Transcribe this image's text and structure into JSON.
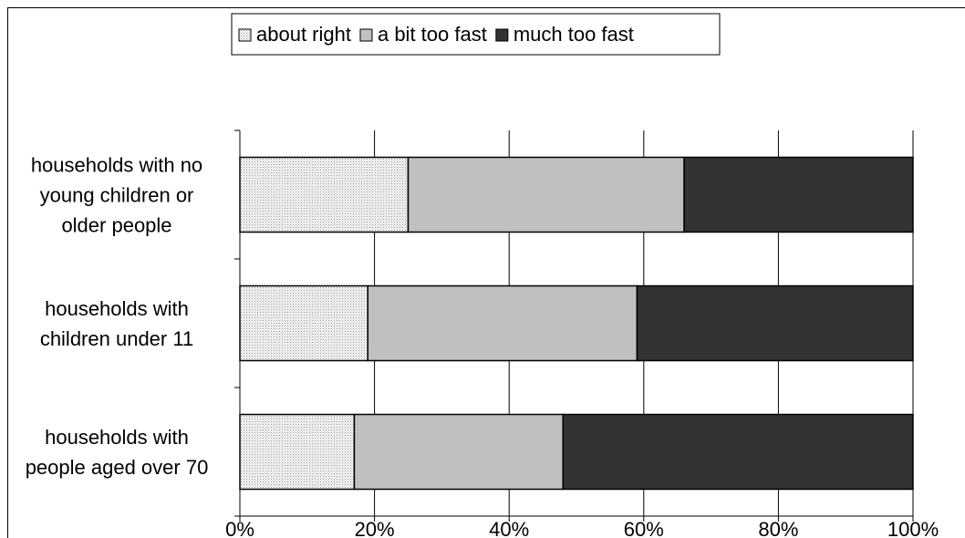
{
  "chart_data": {
    "type": "bar",
    "orientation": "horizontal",
    "stacked": true,
    "percent": true,
    "categories": [
      [
        "households with no",
        "young children or",
        "older people"
      ],
      [
        "households with",
        "children under 11"
      ],
      [
        "households with",
        "people aged over 70"
      ]
    ],
    "series": [
      {
        "name": "about right",
        "values": [
          25,
          19,
          17
        ],
        "color": "#f2f2f2",
        "pattern": "dotted"
      },
      {
        "name": "a bit too fast",
        "values": [
          41,
          40,
          31
        ],
        "color": "#c0c0c0"
      },
      {
        "name": "much too fast",
        "values": [
          34,
          41,
          52
        ],
        "color": "#333333"
      }
    ],
    "x_ticks": [
      "0%",
      "20%",
      "40%",
      "60%",
      "80%",
      "100%"
    ],
    "xlim": [
      0,
      100
    ],
    "grid": true,
    "legend_position": "top"
  }
}
